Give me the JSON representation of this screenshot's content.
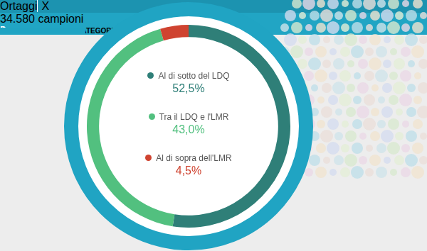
{
  "chart_data": {
    "type": "doughnut",
    "title": "Ortaggi",
    "subtitle": "34.580 campioni",
    "annotations": [
      "X",
      "PRODOTTI DELLA CATEGORIA"
    ],
    "categories": [
      "Al di sotto del LDQ",
      "Tra il LDQ e l'LMR",
      "Al di sopra dell'LMR"
    ],
    "values": [
      52.5,
      43.0,
      4.5
    ],
    "value_labels": [
      "52,5%",
      "43,0%",
      "4,5%"
    ],
    "colors": [
      "#2f7f78",
      "#52c07f",
      "#cf4330"
    ],
    "data_labels": true,
    "legend": "center"
  }
}
